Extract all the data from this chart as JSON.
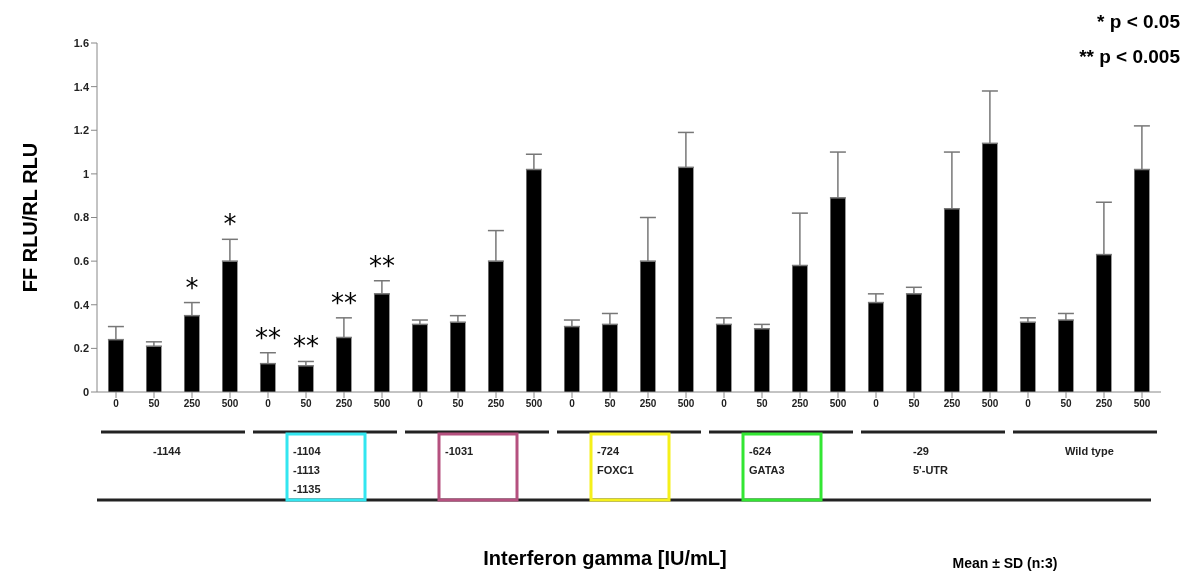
{
  "chart_data": {
    "type": "bar",
    "ylabel": "FF RLU/RL RLU",
    "categories": [
      "0",
      "50",
      "250",
      "500",
      "0",
      "50",
      "250",
      "500",
      "0",
      "50",
      "250",
      "500",
      "0",
      "50",
      "250",
      "500",
      "0",
      "50",
      "250",
      "500",
      "0",
      "50",
      "250",
      "500",
      "0",
      "50",
      "250",
      "500"
    ],
    "values": [
      0.24,
      0.21,
      0.35,
      0.6,
      0.13,
      0.12,
      0.25,
      0.45,
      0.31,
      0.32,
      0.6,
      1.02,
      0.3,
      0.31,
      0.6,
      1.03,
      0.31,
      0.29,
      0.58,
      0.89,
      0.41,
      0.45,
      0.84,
      1.14,
      0.32,
      0.33,
      0.63,
      1.02
    ],
    "errors": [
      [
        0.24,
        0.3
      ],
      [
        0.21,
        0.23
      ],
      [
        0.35,
        0.41
      ],
      [
        0.6,
        0.7
      ],
      [
        0.13,
        0.18
      ],
      [
        0.12,
        0.14
      ],
      [
        0.25,
        0.34
      ],
      [
        0.45,
        0.51
      ],
      [
        0.31,
        0.33
      ],
      [
        0.32,
        0.35
      ],
      [
        0.6,
        0.74
      ],
      [
        1.02,
        1.09
      ],
      [
        0.3,
        0.33
      ],
      [
        0.31,
        0.36
      ],
      [
        0.6,
        0.8
      ],
      [
        1.03,
        1.19
      ],
      [
        0.31,
        0.34
      ],
      [
        0.29,
        0.31
      ],
      [
        0.58,
        0.82
      ],
      [
        0.89,
        1.1
      ],
      [
        0.41,
        0.45
      ],
      [
        0.45,
        0.48
      ],
      [
        0.84,
        1.1
      ],
      [
        1.14,
        1.38
      ],
      [
        0.32,
        0.34
      ],
      [
        0.33,
        0.36
      ],
      [
        0.63,
        0.87
      ],
      [
        1.02,
        1.22
      ]
    ],
    "value_labels": [
      null,
      null,
      "*",
      "*",
      "**",
      "**",
      "**",
      "**",
      null,
      null,
      null,
      null,
      null,
      null,
      null,
      null,
      null,
      null,
      null,
      null,
      null,
      null,
      null,
      null,
      null,
      null,
      null,
      null
    ],
    "color": "#000000",
    "ylim": [
      0,
      1.6
    ],
    "yticks": [
      0,
      0.2,
      0.4,
      0.6,
      0.8,
      1,
      1.2,
      1.4,
      1.6
    ],
    "annotations": [
      "-1144",
      "-1104\n-1113\n-1135",
      "-1031",
      "-724\nFOXC1",
      "-624\nGATA3",
      "-29\n5'-UTR",
      "Wild type",
      "Interferon gamma [IU/mL]",
      "Mean ± SD (n:3)",
      "* p < 0.05",
      "** p < 0.005"
    ]
  }
}
